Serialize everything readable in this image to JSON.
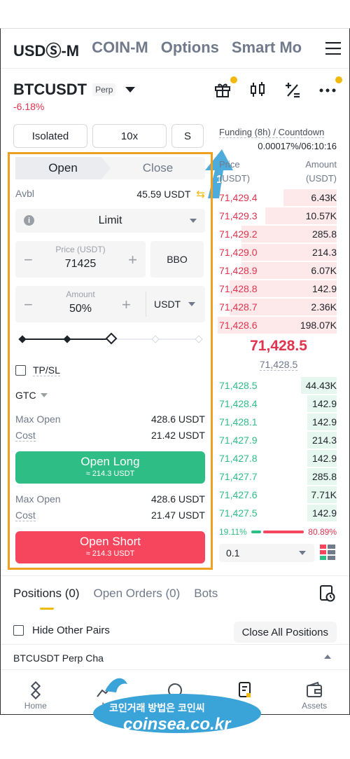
{
  "top_tabs": [
    "USDⓈ-M",
    "COIN-M",
    "Options",
    "Smart Mo"
  ],
  "symbol": {
    "name": "BTCUSDT",
    "badge": "Perp",
    "change": "-6.18%"
  },
  "margin": {
    "mode": "Isolated",
    "leverage": "10x",
    "asset_mode": "S"
  },
  "order_form": {
    "open_label": "Open",
    "close_label": "Close",
    "avbl_label": "Avbl",
    "avbl_value": "45.59 USDT",
    "order_type": "Limit",
    "price_label": "Price (USDT)",
    "price_value": "71425",
    "bbo_label": "BBO",
    "amount_label": "Amount",
    "amount_value": "50%",
    "amount_unit": "USDT",
    "slider_fraction": 0.5,
    "tpsl_label": "TP/SL",
    "tif": "GTC",
    "long": {
      "max_open_label": "Max Open",
      "max_open": "428.6 USDT",
      "cost_label": "Cost",
      "cost": "21.42 USDT",
      "button": "Open Long",
      "sub": "≈ 214.3 USDT"
    },
    "short": {
      "max_open_label": "Max Open",
      "max_open": "428.6 USDT",
      "cost_label": "Cost",
      "cost": "21.47 USDT",
      "button": "Open Short",
      "sub": "≈ 214.3 USDT"
    }
  },
  "funding": {
    "label": "Funding (8h) / Countdown",
    "value": "0.00017%/06:10:16"
  },
  "orderbook": {
    "price_header": "Price",
    "amount_header": "Amount",
    "price_unit": "(USDT)",
    "amount_unit": "(USDT)",
    "asks": [
      {
        "price": "71,429.4",
        "amount": "6.43K",
        "depth": 0.45
      },
      {
        "price": "71,429.3",
        "amount": "10.57K",
        "depth": 0.6
      },
      {
        "price": "71,429.2",
        "amount": "285.8",
        "depth": 0.8
      },
      {
        "price": "71,429.0",
        "amount": "214.3",
        "depth": 0.8
      },
      {
        "price": "71,428.9",
        "amount": "6.07K",
        "depth": 0.8
      },
      {
        "price": "71,428.8",
        "amount": "142.9",
        "depth": 0.9
      },
      {
        "price": "71,428.7",
        "amount": "2.36K",
        "depth": 0.9
      },
      {
        "price": "71,428.6",
        "amount": "198.07K",
        "depth": 1.0
      }
    ],
    "mid_price": "71,428.5",
    "mark_price": "71,428.5",
    "bids": [
      {
        "price": "71,428.5",
        "amount": "44.43K",
        "depth": 0.3
      },
      {
        "price": "71,428.4",
        "amount": "142.9",
        "depth": 0.25
      },
      {
        "price": "71,428.1",
        "amount": "142.9",
        "depth": 0.25
      },
      {
        "price": "71,427.9",
        "amount": "214.3",
        "depth": 0.25
      },
      {
        "price": "71,427.8",
        "amount": "142.9",
        "depth": 0.25
      },
      {
        "price": "71,427.7",
        "amount": "285.8",
        "depth": 0.25
      },
      {
        "price": "71,427.6",
        "amount": "7.71K",
        "depth": 0.25
      },
      {
        "price": "71,427.5",
        "amount": "142.9",
        "depth": 0.25
      }
    ],
    "buy_ratio": "19.11%",
    "sell_ratio": "80.89%",
    "depth_step": "0.1"
  },
  "positions": {
    "tabs": [
      "Positions (0)",
      "Open Orders (0)",
      "Bots"
    ],
    "hide_other_pairs": "Hide Other Pairs",
    "close_all": "Close All Positions",
    "chart_row": "BTCUSDT Perp Cha"
  },
  "bottom_nav": [
    "Home",
    "M",
    "",
    "s",
    "Assets"
  ],
  "annotation_number": "1",
  "watermark": {
    "line1": "코인거래 방법은 코인씨",
    "line2": "coinsea.co.kr"
  },
  "colors": {
    "accent": "#f0b90b",
    "up": "#2ebd85",
    "down": "#f6465d",
    "highlight_border": "#f0a020"
  }
}
